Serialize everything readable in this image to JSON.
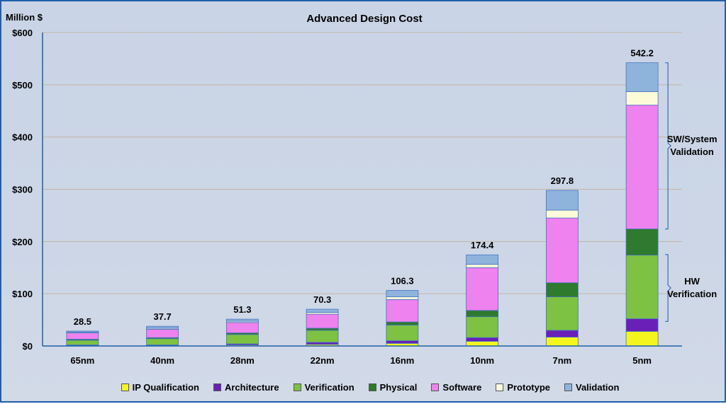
{
  "chart_data": {
    "type": "bar",
    "stacked": true,
    "title": "Advanced Design Cost",
    "ylabel": "Million $",
    "xlabel": "",
    "ylim": [
      0,
      600
    ],
    "yticks": [
      0,
      100,
      200,
      300,
      400,
      500,
      600
    ],
    "ytick_labels": [
      "$0",
      "$100",
      "$200",
      "$300",
      "$400",
      "$500",
      "$600"
    ],
    "categories": [
      "65nm",
      "40nm",
      "28nm",
      "22nm",
      "16nm",
      "10nm",
      "7nm",
      "5nm"
    ],
    "totals": [
      28.5,
      37.7,
      51.3,
      70.3,
      106.3,
      174.4,
      297.8,
      542.2
    ],
    "total_labels": [
      "28.5",
      "37.7",
      "51.3",
      "70.3",
      "106.3",
      "174.4",
      "297.8",
      "542.2"
    ],
    "grid": true,
    "legend_position": "bottom",
    "series": [
      {
        "name": "IP Qualification",
        "color": "#f5f51e",
        "values": [
          1,
          1,
          2,
          3,
          5,
          9,
          17,
          28
        ]
      },
      {
        "name": "Architecture",
        "color": "#6a1fb8",
        "values": [
          1,
          1,
          2,
          4,
          5,
          7,
          13,
          24
        ]
      },
      {
        "name": "Verification",
        "color": "#7dc242",
        "values": [
          9,
          12,
          18,
          23,
          30,
          40,
          64,
          122
        ]
      },
      {
        "name": "Physical",
        "color": "#2e7a2e",
        "values": [
          2,
          2,
          3,
          4,
          6,
          12,
          27,
          50
        ]
      },
      {
        "name": "Software",
        "color": "#ee82ee",
        "values": [
          12,
          16,
          20,
          27,
          43,
          82,
          124,
          237
        ]
      },
      {
        "name": "Prototype",
        "color": "#fbfbd8",
        "values": [
          1.5,
          2,
          2.3,
          3.3,
          5,
          6.4,
          15,
          26
        ]
      },
      {
        "name": "Validation",
        "color": "#8fb4dc",
        "values": [
          2,
          3.7,
          4,
          6,
          12.3,
          18,
          37.8,
          55.2
        ]
      }
    ],
    "annotations": [
      {
        "text_lines": [
          "SW/System",
          "Validation"
        ],
        "y_range": [
          224,
          542.2
        ]
      },
      {
        "text_lines": [
          "HW",
          "Verification"
        ],
        "y_range": [
          47,
          175
        ]
      }
    ],
    "colors": {
      "grid": "#c4b5a7",
      "axis": "#1f5fa8",
      "bar_outline": "#4472c4",
      "bracket": "#3a6fb8"
    }
  }
}
